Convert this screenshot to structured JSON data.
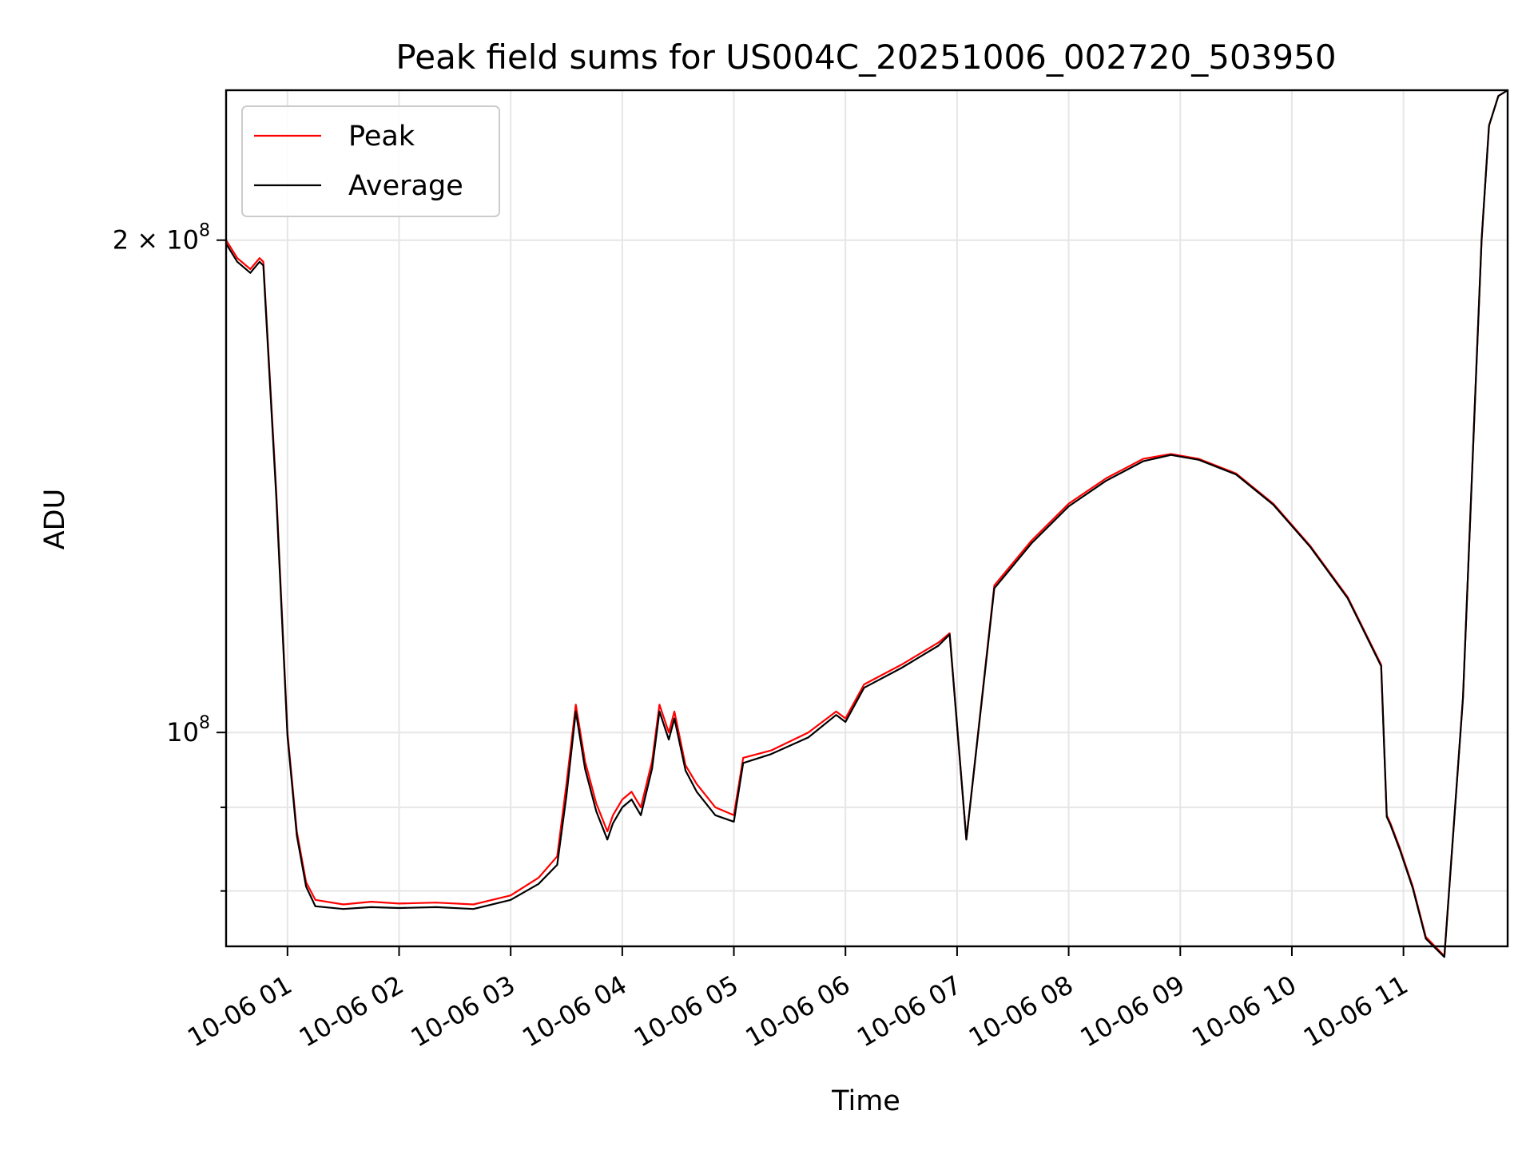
{
  "chart_data": {
    "type": "line",
    "title": "Peak field sums for US004C_20251006_002720_503950",
    "xlabel": "Time",
    "ylabel": "ADU",
    "y_scale": "log",
    "grid": true,
    "legend_position": "upper-left",
    "xlim": [
      "2025-10-06 00:27",
      "2025-10-06 11:56"
    ],
    "ylim": [
      74000000,
      247000000
    ],
    "x_ticks": [
      "10-06 01",
      "10-06 02",
      "10-06 03",
      "10-06 04",
      "10-06 05",
      "10-06 06",
      "10-06 07",
      "10-06 08",
      "10-06 09",
      "10-06 10",
      "10-06 11"
    ],
    "x_tick_times": [
      "2025-10-06 01:00",
      "2025-10-06 02:00",
      "2025-10-06 03:00",
      "2025-10-06 04:00",
      "2025-10-06 05:00",
      "2025-10-06 06:00",
      "2025-10-06 07:00",
      "2025-10-06 08:00",
      "2025-10-06 09:00",
      "2025-10-06 10:00",
      "2025-10-06 11:00"
    ],
    "y_ticks": [
      {
        "value": 200000000,
        "mantissa": "2",
        "times": "×",
        "base": "10",
        "exp": "8"
      },
      {
        "value": 100000000,
        "mantissa": "",
        "times": "",
        "base": "10",
        "exp": "8"
      }
    ],
    "y_minor_ticks": [
      80000000,
      90000000
    ],
    "series": [
      {
        "name": "Peak",
        "color": "#ff0000",
        "x": [
          "2025-10-06 00:27",
          "2025-10-06 00:33",
          "2025-10-06 00:40",
          "2025-10-06 00:45",
          "2025-10-06 00:47",
          "2025-10-06 00:54",
          "2025-10-06 01:00",
          "2025-10-06 01:05",
          "2025-10-06 01:10",
          "2025-10-06 01:15",
          "2025-10-06 01:30",
          "2025-10-06 01:45",
          "2025-10-06 02:00",
          "2025-10-06 02:20",
          "2025-10-06 02:40",
          "2025-10-06 03:00",
          "2025-10-06 03:15",
          "2025-10-06 03:25",
          "2025-10-06 03:30",
          "2025-10-06 03:35",
          "2025-10-06 03:40",
          "2025-10-06 03:46",
          "2025-10-06 03:52",
          "2025-10-06 03:55",
          "2025-10-06 04:00",
          "2025-10-06 04:05",
          "2025-10-06 04:10",
          "2025-10-06 04:16",
          "2025-10-06 04:20",
          "2025-10-06 04:25",
          "2025-10-06 04:28",
          "2025-10-06 04:34",
          "2025-10-06 04:40",
          "2025-10-06 04:50",
          "2025-10-06 05:00",
          "2025-10-06 05:05",
          "2025-10-06 05:20",
          "2025-10-06 05:40",
          "2025-10-06 05:55",
          "2025-10-06 06:00",
          "2025-10-06 06:10",
          "2025-10-06 06:30",
          "2025-10-06 06:50",
          "2025-10-06 06:56",
          "2025-10-06 07:05",
          "2025-10-06 07:20",
          "2025-10-06 07:40",
          "2025-10-06 08:00",
          "2025-10-06 08:20",
          "2025-10-06 08:40",
          "2025-10-06 08:55",
          "2025-10-06 09:10",
          "2025-10-06 09:30",
          "2025-10-06 09:50",
          "2025-10-06 10:10",
          "2025-10-06 10:30",
          "2025-10-06 10:48",
          "2025-10-06 10:51",
          "2025-10-06 10:53",
          "2025-10-06 10:58",
          "2025-10-06 11:05",
          "2025-10-06 11:12",
          "2025-10-06 11:22",
          "2025-10-06 11:32",
          "2025-10-06 11:38",
          "2025-10-06 11:42",
          "2025-10-06 11:46",
          "2025-10-06 11:51",
          "2025-10-06 11:56"
        ],
        "y": [
          200000000,
          195000000,
          192000000,
          195000000,
          194000000,
          140000000,
          100000000,
          87000000,
          81000000,
          79000000,
          78500000,
          78800000,
          78600000,
          78700000,
          78500000,
          79500000,
          81500000,
          84000000,
          93000000,
          104000000,
          96000000,
          90500000,
          87000000,
          89000000,
          91000000,
          92000000,
          90000000,
          96000000,
          104000000,
          100000000,
          103000000,
          95500000,
          93000000,
          90000000,
          89000000,
          96500000,
          97500000,
          100000000,
          103000000,
          102000000,
          107000000,
          110000000,
          113500000,
          115000000,
          86000000,
          123000000,
          131000000,
          138000000,
          143000000,
          147000000,
          148000000,
          147000000,
          144000000,
          138000000,
          130000000,
          121000000,
          110000000,
          89000000,
          88000000,
          85000000,
          80500000,
          75000000,
          73000000,
          105000000,
          155000000,
          200000000,
          235000000,
          245000000,
          247000000
        ]
      },
      {
        "name": "Average",
        "color": "#000000",
        "x": [
          "2025-10-06 00:27",
          "2025-10-06 00:33",
          "2025-10-06 00:40",
          "2025-10-06 00:45",
          "2025-10-06 00:47",
          "2025-10-06 00:54",
          "2025-10-06 01:00",
          "2025-10-06 01:05",
          "2025-10-06 01:10",
          "2025-10-06 01:15",
          "2025-10-06 01:30",
          "2025-10-06 01:45",
          "2025-10-06 02:00",
          "2025-10-06 02:20",
          "2025-10-06 02:40",
          "2025-10-06 03:00",
          "2025-10-06 03:15",
          "2025-10-06 03:25",
          "2025-10-06 03:30",
          "2025-10-06 03:35",
          "2025-10-06 03:40",
          "2025-10-06 03:46",
          "2025-10-06 03:52",
          "2025-10-06 03:55",
          "2025-10-06 04:00",
          "2025-10-06 04:05",
          "2025-10-06 04:10",
          "2025-10-06 04:16",
          "2025-10-06 04:20",
          "2025-10-06 04:25",
          "2025-10-06 04:28",
          "2025-10-06 04:34",
          "2025-10-06 04:40",
          "2025-10-06 04:50",
          "2025-10-06 05:00",
          "2025-10-06 05:05",
          "2025-10-06 05:20",
          "2025-10-06 05:40",
          "2025-10-06 05:55",
          "2025-10-06 06:00",
          "2025-10-06 06:10",
          "2025-10-06 06:30",
          "2025-10-06 06:50",
          "2025-10-06 06:56",
          "2025-10-06 07:05",
          "2025-10-06 07:20",
          "2025-10-06 07:40",
          "2025-10-06 08:00",
          "2025-10-06 08:20",
          "2025-10-06 08:40",
          "2025-10-06 08:55",
          "2025-10-06 09:10",
          "2025-10-06 09:30",
          "2025-10-06 09:50",
          "2025-10-06 10:10",
          "2025-10-06 10:30",
          "2025-10-06 10:48",
          "2025-10-06 10:51",
          "2025-10-06 10:53",
          "2025-10-06 10:58",
          "2025-10-06 11:05",
          "2025-10-06 11:12",
          "2025-10-06 11:22",
          "2025-10-06 11:32",
          "2025-10-06 11:38",
          "2025-10-06 11:42",
          "2025-10-06 11:46",
          "2025-10-06 11:51",
          "2025-10-06 11:56"
        ],
        "y": [
          199000000,
          194000000,
          191000000,
          194000000,
          193000000,
          139000000,
          99500000,
          86500000,
          80500000,
          78300000,
          78000000,
          78200000,
          78100000,
          78200000,
          78000000,
          79000000,
          80800000,
          83000000,
          91500000,
          103000000,
          95000000,
          89500000,
          86000000,
          88000000,
          90000000,
          91000000,
          89000000,
          95000000,
          103000000,
          99000000,
          102000000,
          94800000,
          92000000,
          89000000,
          88200000,
          95800000,
          97000000,
          99300000,
          102500000,
          101500000,
          106500000,
          109500000,
          113000000,
          114800000,
          86000000,
          122500000,
          130500000,
          137500000,
          142500000,
          146500000,
          147800000,
          146800000,
          143800000,
          137800000,
          129800000,
          120800000,
          109800000,
          88800000,
          87800000,
          84800000,
          80300000,
          74800000,
          72900000,
          105000000,
          155000000,
          200000000,
          235000000,
          245000000,
          247000000
        ]
      }
    ]
  }
}
